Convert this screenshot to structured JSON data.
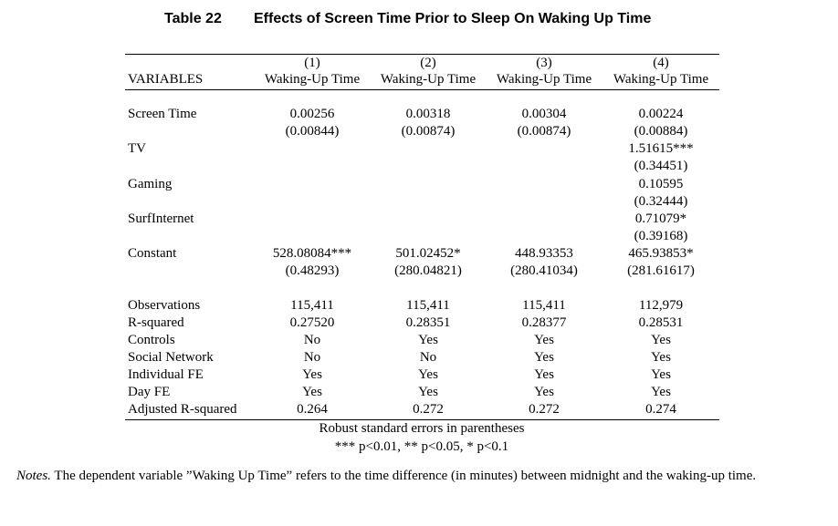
{
  "caption": {
    "label": "Table 22",
    "title": "Effects of Screen Time Prior to Sleep On Waking Up Time"
  },
  "header": {
    "variables_label": "VARIABLES",
    "columns": [
      {
        "num": "(1)",
        "name": "Waking-Up Time"
      },
      {
        "num": "(2)",
        "name": "Waking-Up Time"
      },
      {
        "num": "(3)",
        "name": "Waking-Up Time"
      },
      {
        "num": "(4)",
        "name": "Waking-Up Time"
      }
    ]
  },
  "rows": [
    {
      "label": "Screen Time",
      "coef": [
        "0.00256",
        "0.00318",
        "0.00304",
        "0.00224"
      ],
      "se": [
        "(0.00844)",
        "(0.00874)",
        "(0.00874)",
        "(0.00884)"
      ]
    },
    {
      "label": "TV",
      "coef": [
        "",
        "",
        "",
        "1.51615***"
      ],
      "se": [
        "",
        "",
        "",
        "(0.34451)"
      ]
    },
    {
      "label": "Gaming",
      "coef": [
        "",
        "",
        "",
        "0.10595"
      ],
      "se": [
        "",
        "",
        "",
        "(0.32444)"
      ]
    },
    {
      "label": "SurfInternet",
      "coef": [
        "",
        "",
        "",
        "0.71079*"
      ],
      "se": [
        "",
        "",
        "",
        "(0.39168)"
      ]
    },
    {
      "label": "Constant",
      "coef": [
        "528.08084***",
        "501.02452*",
        "448.93353",
        "465.93853*"
      ],
      "se": [
        "(0.48293)",
        "(280.04821)",
        "(280.41034)",
        "(281.61617)"
      ]
    }
  ],
  "stats": [
    {
      "label": "Observations",
      "values": [
        "115,411",
        "115,411",
        "115,411",
        "112,979"
      ]
    },
    {
      "label": "R-squared",
      "values": [
        "0.27520",
        "0.28351",
        "0.28377",
        "0.28531"
      ]
    },
    {
      "label": "Controls",
      "values": [
        "No",
        "Yes",
        "Yes",
        "Yes"
      ]
    },
    {
      "label": "Social Network",
      "values": [
        "No",
        "No",
        "Yes",
        "Yes"
      ]
    },
    {
      "label": "Individual FE",
      "values": [
        "Yes",
        "Yes",
        "Yes",
        "Yes"
      ]
    },
    {
      "label": "Day FE",
      "values": [
        "Yes",
        "Yes",
        "Yes",
        "Yes"
      ]
    },
    {
      "label": "Adjusted R-squared",
      "values": [
        "0.264",
        "0.272",
        "0.272",
        "0.274"
      ]
    }
  ],
  "footnotes": {
    "robust": "Robust standard errors in parentheses",
    "significance": "*** p<0.01, ** p<0.05, * p<0.1"
  },
  "notes": {
    "label": "Notes.",
    "text": " The dependent variable ”Waking Up Time” refers to the time difference (in minutes) between midnight and the waking-up time."
  }
}
